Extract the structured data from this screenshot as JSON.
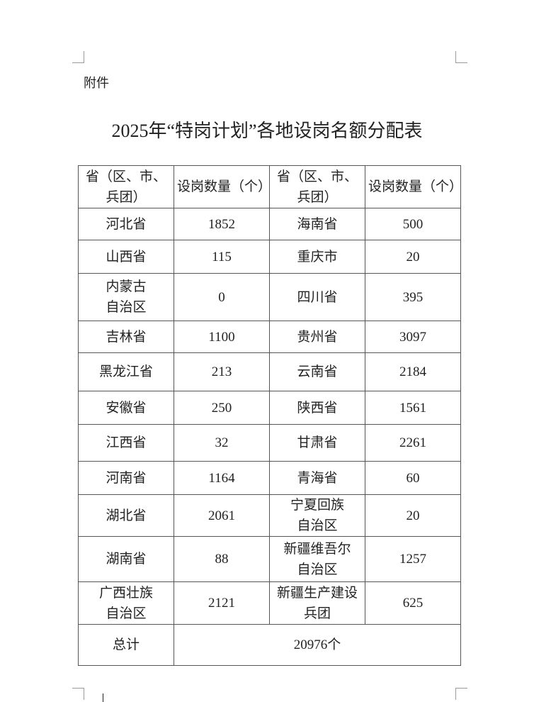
{
  "attachment_label": "附件",
  "title": "2025年“特岗计划”各地设岗名额分配表",
  "table": {
    "headers": [
      "省（区、市、兵团）",
      "设岗数量（个）",
      "省（区、市、兵团）",
      "设岗数量（个）"
    ],
    "rows": [
      [
        "河北省",
        "1852",
        "海南省",
        "500"
      ],
      [
        "山西省",
        "115",
        "重庆市",
        "20"
      ],
      [
        "内蒙古\n自治区",
        "0",
        "四川省",
        "395"
      ],
      [
        "吉林省",
        "1100",
        "贵州省",
        "3097"
      ],
      [
        "黑龙江省",
        "213",
        "云南省",
        "2184"
      ],
      [
        "安徽省",
        "250",
        "陕西省",
        "1561"
      ],
      [
        "江西省",
        "32",
        "甘肃省",
        "2261"
      ],
      [
        "河南省",
        "1164",
        "青海省",
        "60"
      ],
      [
        "湖北省",
        "2061",
        "宁夏回族\n自治区",
        "20"
      ],
      [
        "湖南省",
        "88",
        "新疆维吾尔\n自治区",
        "1257"
      ],
      [
        "广西壮族\n自治区",
        "2121",
        "新疆生产建设\n兵团",
        "625"
      ]
    ],
    "total_label": "总计",
    "total_value": "20976个"
  }
}
